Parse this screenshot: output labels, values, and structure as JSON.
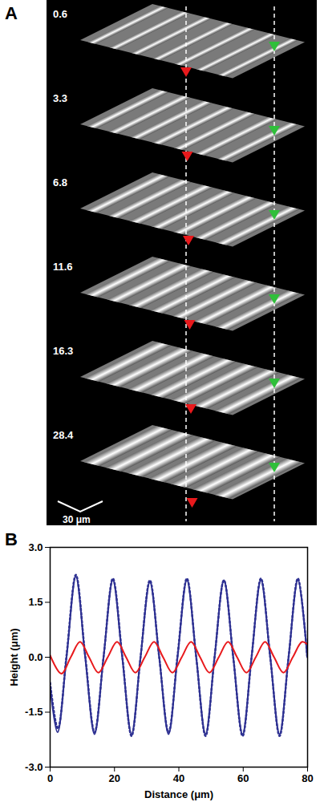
{
  "panel_a": {
    "label": "A",
    "times": [
      0.6,
      3.3,
      6.8,
      11.6,
      16.3,
      28.4
    ],
    "scale_bar": "30 μm"
  },
  "chart_data": {
    "type": "line",
    "title": "B",
    "x_label": "Distance (μm)",
    "y_label": "Height (μm)",
    "xlim": [
      0,
      80
    ],
    "xticks": [
      0,
      20,
      40,
      60,
      80
    ],
    "ylim": [
      -3,
      3
    ],
    "yticks": [
      {
        "value": -3,
        "label": "-3.0"
      },
      -1.5,
      {
        "value": 0,
        "label": "0.0"
      },
      1.5,
      {
        "value": 3,
        "label": "3.0"
      }
    ],
    "grid": false,
    "series": [
      {
        "color": "#2e3192",
        "line_style": "solid",
        "x": [
          0,
          2.3,
          5.1,
          8,
          10.9,
          13.8,
          16.6,
          19.5,
          22.4,
          25.3,
          28.1,
          31,
          33.9,
          36.8,
          39.6,
          42.5,
          45.4,
          48.3,
          51.1,
          54,
          56.9,
          59.8,
          62.6,
          65.5,
          68.4,
          71.3,
          74.1,
          77,
          79.9
        ],
        "values": [
          -0.8,
          -2.05,
          0,
          2.2,
          0,
          -2.1,
          0,
          2.1,
          0,
          -2.1,
          0,
          2.05,
          0,
          -2.1,
          0,
          2.1,
          0,
          -2.1,
          0,
          2.1,
          0,
          -2.1,
          0,
          2.1,
          0,
          -2.1,
          0,
          2.1,
          0
        ]
      },
      {
        "color": "#2e3192",
        "line_style": "dotted",
        "x": [
          0,
          2.4,
          5.1,
          8,
          10.9,
          13.8,
          16.6,
          19.5,
          22.4,
          25.3,
          28.1,
          31,
          33.9,
          36.8,
          39.6,
          42.5,
          45.4,
          48.3,
          51.1,
          54,
          56.9,
          59.8,
          62.6,
          65.5,
          68.4,
          71.3,
          74.1,
          77,
          79.9
        ],
        "values": [
          -0.7,
          -1.95,
          0.05,
          2.25,
          0.05,
          -2.05,
          0,
          2.15,
          0.05,
          -2.15,
          0,
          2.1,
          0,
          -2.05,
          0.05,
          2.15,
          0,
          -2.15,
          0,
          2.1,
          0,
          -2.15,
          0,
          2.15,
          0,
          -2.15,
          0,
          2.15,
          0
        ]
      },
      {
        "color": "#e8191c",
        "line_style": "solid",
        "x": [
          0,
          3.5,
          6.4,
          9.3,
          12.1,
          15,
          17.9,
          20.8,
          23.6,
          26.5,
          29.4,
          32.3,
          35.1,
          38,
          40.9,
          43.8,
          46.6,
          49.5,
          52.4,
          55.3,
          58.1,
          61,
          63.9,
          66.8,
          69.6,
          72.5,
          75.4,
          78.3,
          80
        ],
        "values": [
          0.05,
          -0.45,
          0,
          0.42,
          0,
          -0.42,
          0,
          0.42,
          0,
          -0.42,
          0,
          0.42,
          0,
          -0.42,
          0,
          0.42,
          0,
          -0.42,
          0,
          0.42,
          0,
          -0.42,
          0,
          0.42,
          0,
          -0.42,
          0,
          0.42,
          0.35
        ]
      }
    ]
  }
}
